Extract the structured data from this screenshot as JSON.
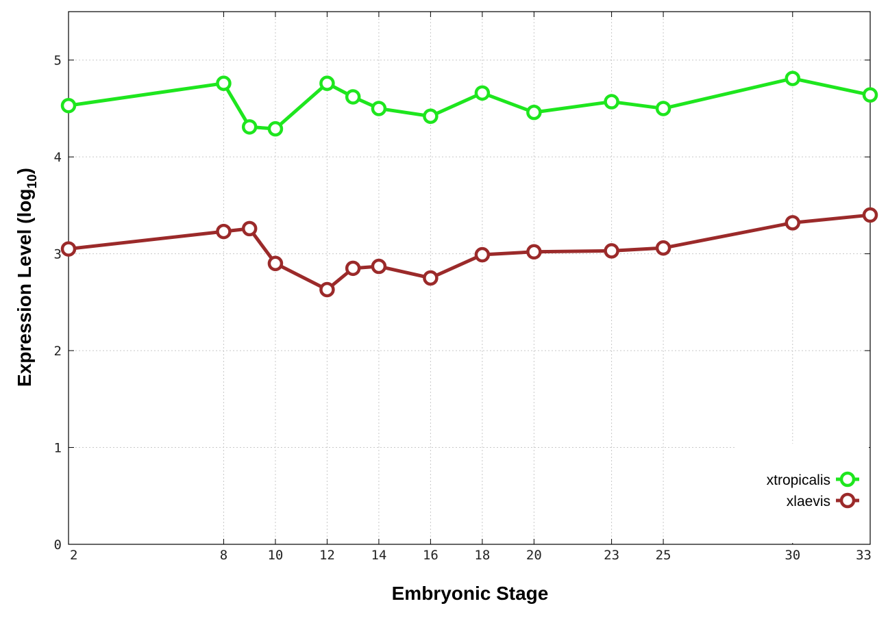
{
  "chart_data": {
    "type": "line",
    "xlabel": "Embryonic Stage",
    "ylabel_main": "Expression Level (log",
    "ylabel_sub": "10",
    "ylabel_close": ")",
    "x_categories": [
      "2",
      "8",
      "9",
      "10",
      "12",
      "13",
      "14",
      "16",
      "18",
      "20",
      "23",
      "25",
      "30",
      "33"
    ],
    "x_tick_labels": [
      "2",
      "8",
      "10",
      "12",
      "14",
      "16",
      "18",
      "20",
      "23",
      "25",
      "30",
      "33"
    ],
    "ylim": [
      0,
      5.5
    ],
    "y_ticks": [
      0,
      1,
      2,
      3,
      4,
      5
    ],
    "grid": true,
    "legend_position": "bottom-right",
    "series": [
      {
        "name": "xtropicalis",
        "color": "#1ee61e",
        "values": [
          4.53,
          4.76,
          4.31,
          4.29,
          4.76,
          4.62,
          4.5,
          4.42,
          4.66,
          4.46,
          4.57,
          4.5,
          4.81,
          4.64
        ]
      },
      {
        "name": "xlaevis",
        "color": "#9b2a2a",
        "values": [
          3.05,
          3.23,
          3.26,
          2.9,
          2.63,
          2.85,
          2.87,
          2.75,
          2.99,
          3.02,
          3.03,
          3.06,
          3.32,
          3.4
        ]
      }
    ]
  }
}
